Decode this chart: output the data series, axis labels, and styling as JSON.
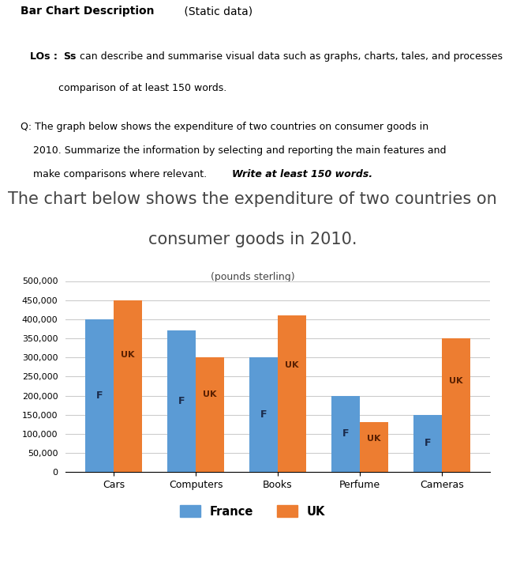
{
  "title_line1": "The chart below shows the expenditure of two countries on",
  "title_line2": "consumer goods in 2010.",
  "title_subtitle": "(pounds sterling)",
  "categories": [
    "Cars",
    "Computers",
    "Books",
    "Perfume",
    "Cameras"
  ],
  "france_values": [
    400000,
    370000,
    300000,
    200000,
    150000
  ],
  "uk_values": [
    450000,
    300000,
    410000,
    130000,
    350000
  ],
  "france_color": "#5B9BD5",
  "uk_color": "#ED7D31",
  "ylim": [
    0,
    500000
  ],
  "yticks": [
    0,
    50000,
    100000,
    150000,
    200000,
    250000,
    300000,
    350000,
    400000,
    450000,
    500000
  ],
  "ytick_labels": [
    "0",
    "50,000",
    "100,000",
    "150,000",
    "200,000",
    "250,000",
    "300,000",
    "350,000",
    "400,000",
    "450,000",
    "500,000"
  ],
  "bar_width": 0.35,
  "background_color": "#ffffff",
  "grid_color": "#cccccc",
  "title_fontsize": 15,
  "label_fontsize": 9,
  "bar_label_fontsize": 9
}
